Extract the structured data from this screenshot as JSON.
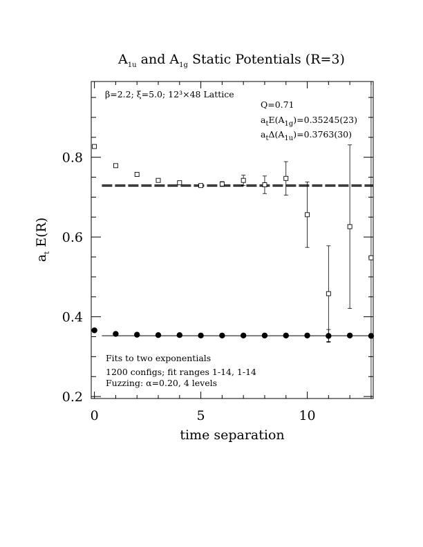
{
  "chart_data": {
    "type": "scatter",
    "title": "A_1u and A_1g Static Potentials (R=3)",
    "title_parts": {
      "a": "A",
      "a_sub": "1u",
      "mid": " and ",
      "b": "A",
      "b_sub": "1g",
      "end": " Static Potentials (R=3)"
    },
    "xlabel": "time separation",
    "ylabel": "a_t E(R)",
    "ylabel_parts": {
      "main": "a",
      "sub": "t",
      "rest": " E(R)"
    },
    "xlim": [
      -0.15,
      13.1
    ],
    "ylim": [
      0.195,
      0.99
    ],
    "x_ticks": [
      0,
      5,
      10
    ],
    "y_ticks": [
      0.2,
      0.4,
      0.6,
      0.8
    ],
    "x_tick_labels": [
      "0",
      "5",
      "10"
    ],
    "y_tick_labels": [
      "0.2",
      "0.4",
      "0.6",
      "0.8"
    ],
    "lattice_info": "β=2.2; ξ=5.0; 12³×48 Lattice",
    "fit_info": {
      "q": "Q=0.71",
      "energy": {
        "main": "a",
        "sub1": "t",
        "mid": "E(A",
        "sub2": "1g",
        "end": ")=0.35245(23)"
      },
      "gap": {
        "main": "a",
        "sub1": "t",
        "mid": "Δ(A",
        "sub2": "1u",
        "end": ")=0.3763(30)"
      }
    },
    "notes": [
      "Fits to two exponentials",
      "1200 configs; fit ranges 1-14, 1-14",
      "Fuzzing: α=0.20, 4 levels"
    ],
    "fit_lines": {
      "a1g": {
        "value": 0.3525,
        "x_range": [
          0.35,
          13.1
        ]
      },
      "a1u_upper": {
        "value": 0.7305,
        "x_range": [
          0.35,
          13.1
        ]
      },
      "a1u_lower": {
        "value": 0.7275,
        "x_range": [
          0.35,
          13.1
        ]
      }
    },
    "series": [
      {
        "name": "A1g",
        "marker": "filled-circle",
        "x": [
          0,
          1,
          2,
          3,
          4,
          5,
          6,
          7,
          8,
          9,
          10,
          11,
          12,
          13
        ],
        "y": [
          0.366,
          0.357,
          0.355,
          0.354,
          0.354,
          0.353,
          0.353,
          0.353,
          0.353,
          0.353,
          0.353,
          0.352,
          0.353,
          0.352
        ],
        "err": [
          0,
          0,
          0,
          0,
          0,
          0,
          0,
          0,
          0,
          0,
          0,
          0.016,
          0,
          0
        ]
      },
      {
        "name": "A1u",
        "marker": "open-square",
        "x": [
          0,
          1,
          2,
          3,
          4,
          5,
          6,
          7,
          8,
          9,
          10,
          11,
          12,
          13
        ],
        "y": [
          0.827,
          0.779,
          0.757,
          0.742,
          0.736,
          0.729,
          0.733,
          0.742,
          0.731,
          0.747,
          0.656,
          0.458,
          0.626,
          0.548
        ],
        "err": [
          0,
          0,
          0,
          0.004,
          0.004,
          0.003,
          0.006,
          0.013,
          0.022,
          0.042,
          0.082,
          0.12,
          0.205,
          0.48
        ]
      }
    ]
  }
}
